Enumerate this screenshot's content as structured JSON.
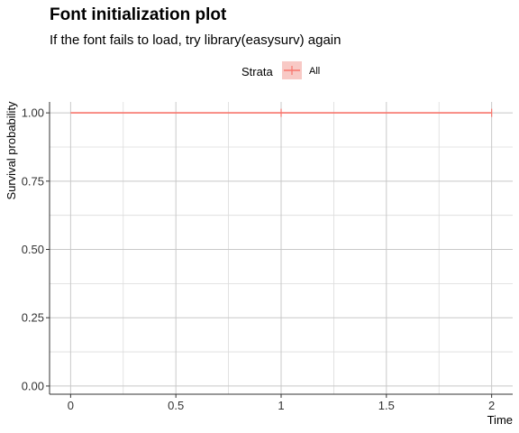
{
  "chart_data": {
    "type": "line",
    "title": "Font initialization plot",
    "subtitle": "If the font fails to load, try library(easysurv) again",
    "xlabel": "Time",
    "ylabel": "Survival probability",
    "xlim": [
      -0.1,
      2.1
    ],
    "ylim": [
      -0.03,
      1.04
    ],
    "x_ticks": [
      0,
      0.5,
      1,
      1.5,
      2
    ],
    "x_tick_labels": [
      "0",
      "0.5",
      "1",
      "1.5",
      "2"
    ],
    "y_ticks": [
      0,
      0.25,
      0.5,
      0.75,
      1
    ],
    "y_tick_labels": [
      "0.00",
      "0.25",
      "0.50",
      "0.75",
      "1.00"
    ],
    "grid": true,
    "legend": {
      "title": "Strata",
      "placement": "top",
      "entries": [
        "All"
      ]
    },
    "series": [
      {
        "name": "All",
        "color": "#f8766d",
        "x": [
          0,
          2
        ],
        "y": [
          1,
          1
        ],
        "censor_x": [
          1,
          2
        ]
      }
    ]
  }
}
